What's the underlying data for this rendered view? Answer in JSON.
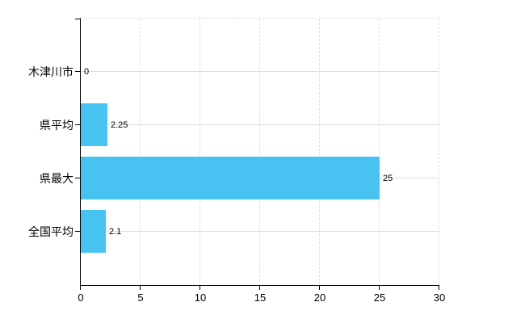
{
  "chart": {
    "colors": {
      "bar": "#47c2f1",
      "axis": "#000000",
      "grid_vertical": "#dedede",
      "grid_horizontal": "#dadfda",
      "text": "#000000",
      "background": "#ffffff"
    }
  },
  "chart_data": {
    "type": "bar",
    "orientation": "horizontal",
    "title": "",
    "xlabel": "",
    "ylabel": "",
    "categories": [
      "木津川市",
      "県平均",
      "県最大",
      "全国平均"
    ],
    "values": [
      0,
      2.25,
      25,
      2.1
    ],
    "value_labels": [
      "0",
      "2.25",
      "25",
      "2.1"
    ],
    "x_ticks": [
      0,
      5,
      10,
      15,
      20,
      25,
      30
    ],
    "x_tick_labels": [
      "0",
      "5",
      "10",
      "15",
      "20",
      "25",
      "30"
    ],
    "xlim": [
      0,
      30
    ],
    "grid": true,
    "legend": "none"
  }
}
